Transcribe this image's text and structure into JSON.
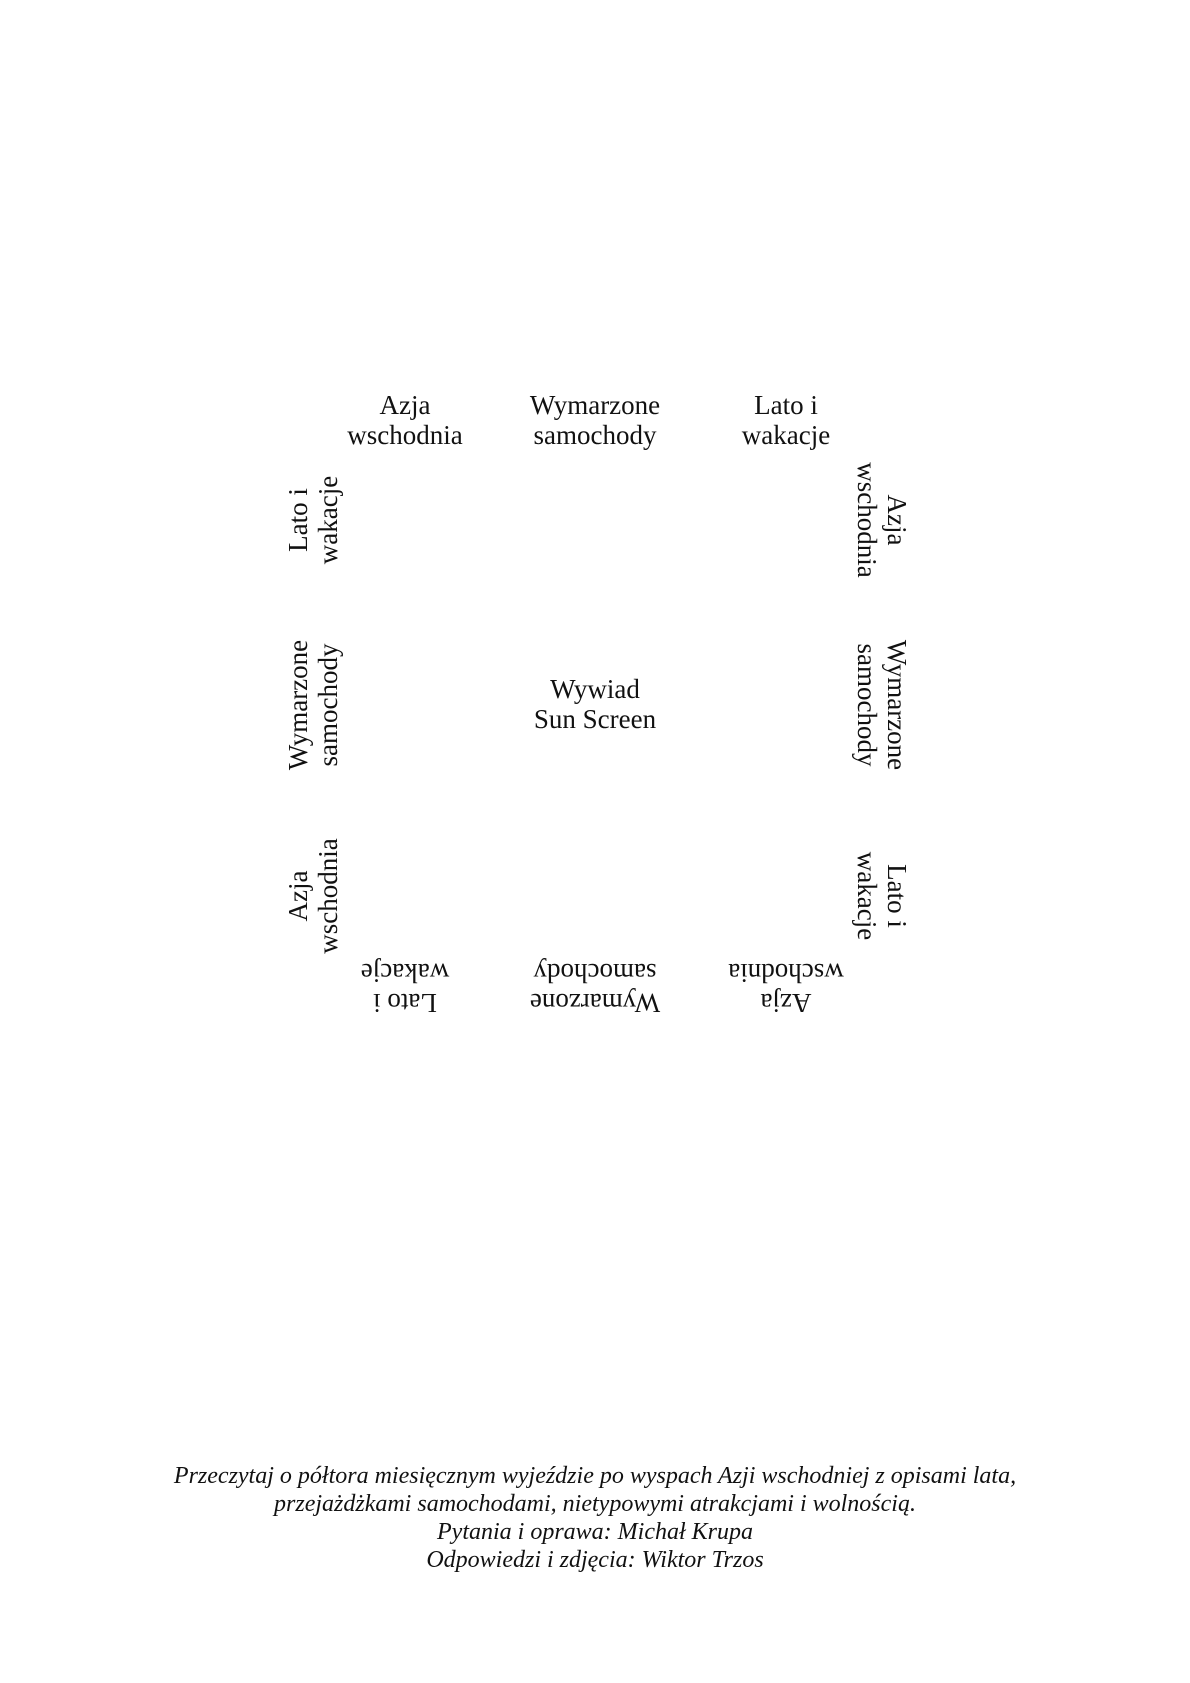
{
  "ring": {
    "top": [
      {
        "line1": "Azja",
        "line2": "wschodnia"
      },
      {
        "line1": "Wymarzone",
        "line2": "samochody"
      },
      {
        "line1": "Lato i",
        "line2": "wakacje"
      }
    ],
    "left": [
      {
        "line1": "Lato i",
        "line2": "wakacje"
      },
      {
        "line1": "Wymarzone",
        "line2": "samochody"
      },
      {
        "line1": "Azja",
        "line2": "wschodnia"
      }
    ],
    "right": [
      {
        "line1": "Azja",
        "line2": "wschodnia"
      },
      {
        "line1": "Wymarzone",
        "line2": "samochody"
      },
      {
        "line1": "Lato i",
        "line2": "wakacje"
      }
    ],
    "bottom": [
      {
        "line1": "Lato i",
        "line2": "wakacje"
      },
      {
        "line1": "Wymarzone",
        "line2": "samochody"
      },
      {
        "line1": "Azja",
        "line2": "wschodnia"
      }
    ]
  },
  "center": {
    "line1": "Wywiad",
    "line2": "Sun Screen"
  },
  "caption": {
    "line1": "Przeczytaj o półtora miesięcznym wyjeździe po wyspach Azji wschodniej z opisami lata,",
    "line2": "przejażdżkami samochodami, nietypowymi atrakcjami i wolnością.",
    "line3": "Pytania i oprawa: Michał Krupa",
    "line4": "Odpowiedzi i zdjęcia: Wiktor Trzos"
  }
}
